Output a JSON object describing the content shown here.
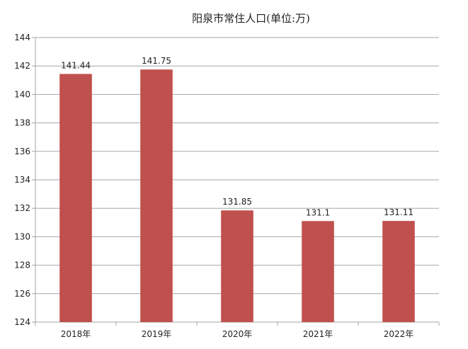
{
  "chart_data": {
    "type": "bar",
    "title": "阳泉市常住人口(单位:万)",
    "categories": [
      "2018年",
      "2019年",
      "2020年",
      "2021年",
      "2022年"
    ],
    "values": [
      141.44,
      141.75,
      131.85,
      131.1,
      131.11
    ],
    "data_labels": [
      "141.44",
      "141.75",
      "131.85",
      "131.1",
      "131.11"
    ],
    "ylim": [
      124,
      144
    ],
    "yticks": [
      124,
      126,
      128,
      130,
      132,
      134,
      136,
      138,
      140,
      142,
      144
    ],
    "grid": true,
    "legend": "none",
    "bar_color": "#c0504d",
    "grid_color": "#a6a6a6"
  }
}
